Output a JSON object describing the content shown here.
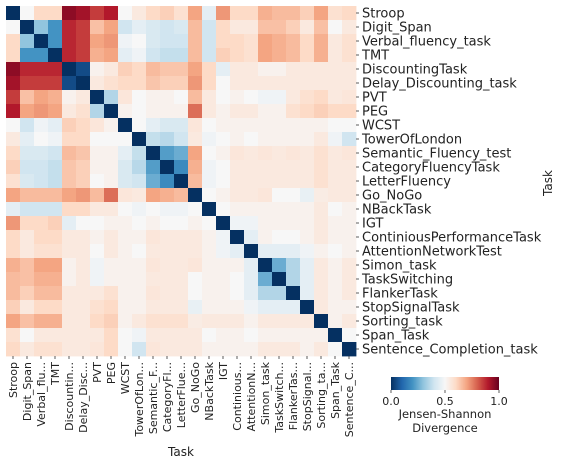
{
  "chart_data": {
    "type": "heatmap",
    "xlabel": "Task",
    "ylabel": "Task",
    "rows": [
      "Stroop",
      "Digit_Span",
      "Verbal_fluency_task",
      "TMT",
      "DiscountingTask",
      "Delay_Discounting_task",
      "PVT",
      "PEG",
      "WCST",
      "TowerOfLondon",
      "Semantic_Fluency_test",
      "CategoryFluencyTask",
      "LetterFluency",
      "Go_NoGo",
      "NBackTask",
      "IGT",
      "ContiniousPerformanceTask",
      "AttentionNetworkTest",
      "Simon_task",
      "TaskSwitching",
      "FlankerTask",
      "StopSignalTask",
      "Sorting_task",
      "Span_Task",
      "Sentence_Completion_task"
    ],
    "columns": [
      "Stroop",
      "Digit_Span",
      "Verbal_flu...",
      "TMT",
      "Discountin...",
      "Delay_Disc...",
      "PVT",
      "PEG",
      "WCST",
      "TowerOfLon...",
      "Semantic_F...",
      "CategoryFl...",
      "LetterFlue...",
      "Go_NoGo",
      "NBackTask",
      "IGT",
      "Continious...",
      "AttentionN...",
      "Simon_task",
      "TaskSwitch...",
      "FlankerTas...",
      "StopSignal...",
      "Sorting_ta...",
      "Span_Task",
      "Sentence_C..."
    ],
    "matrix": [
      [
        0.0,
        0.5,
        0.6,
        0.6,
        0.95,
        0.92,
        0.85,
        0.9,
        0.5,
        0.55,
        0.6,
        0.62,
        0.58,
        0.7,
        0.45,
        0.72,
        0.6,
        0.6,
        0.68,
        0.66,
        0.66,
        0.62,
        0.7,
        0.58,
        0.6
      ],
      [
        0.5,
        0.0,
        0.3,
        0.2,
        0.88,
        0.85,
        0.65,
        0.7,
        0.4,
        0.45,
        0.42,
        0.4,
        0.42,
        0.66,
        0.4,
        0.6,
        0.55,
        0.55,
        0.65,
        0.65,
        0.62,
        0.55,
        0.65,
        0.5,
        0.55
      ],
      [
        0.6,
        0.3,
        0.0,
        0.2,
        0.88,
        0.85,
        0.7,
        0.72,
        0.48,
        0.5,
        0.42,
        0.4,
        0.4,
        0.66,
        0.4,
        0.6,
        0.6,
        0.58,
        0.7,
        0.68,
        0.66,
        0.6,
        0.68,
        0.55,
        0.58
      ],
      [
        0.6,
        0.2,
        0.2,
        0.0,
        0.88,
        0.85,
        0.68,
        0.7,
        0.45,
        0.48,
        0.4,
        0.38,
        0.38,
        0.66,
        0.4,
        0.62,
        0.6,
        0.58,
        0.7,
        0.68,
        0.66,
        0.6,
        0.68,
        0.55,
        0.58
      ],
      [
        0.95,
        0.88,
        0.88,
        0.88,
        0.0,
        0.05,
        0.52,
        0.55,
        0.62,
        0.6,
        0.66,
        0.64,
        0.64,
        0.7,
        0.6,
        0.45,
        0.55,
        0.55,
        0.52,
        0.52,
        0.55,
        0.55,
        0.55,
        0.55,
        0.55
      ],
      [
        0.92,
        0.85,
        0.85,
        0.85,
        0.05,
        0.0,
        0.55,
        0.58,
        0.6,
        0.6,
        0.64,
        0.62,
        0.62,
        0.72,
        0.6,
        0.5,
        0.55,
        0.55,
        0.55,
        0.55,
        0.55,
        0.55,
        0.55,
        0.55,
        0.55
      ],
      [
        0.85,
        0.65,
        0.7,
        0.68,
        0.52,
        0.55,
        0.0,
        0.35,
        0.56,
        0.5,
        0.52,
        0.52,
        0.5,
        0.66,
        0.55,
        0.5,
        0.52,
        0.5,
        0.48,
        0.48,
        0.55,
        0.58,
        0.6,
        0.55,
        0.56
      ],
      [
        0.9,
        0.7,
        0.72,
        0.7,
        0.55,
        0.58,
        0.35,
        0.0,
        0.52,
        0.5,
        0.52,
        0.52,
        0.52,
        0.78,
        0.55,
        0.52,
        0.55,
        0.55,
        0.52,
        0.52,
        0.58,
        0.6,
        0.62,
        0.6,
        0.6
      ],
      [
        0.5,
        0.4,
        0.48,
        0.45,
        0.62,
        0.6,
        0.56,
        0.52,
        0.0,
        0.5,
        0.45,
        0.42,
        0.42,
        0.56,
        0.5,
        0.52,
        0.52,
        0.52,
        0.52,
        0.52,
        0.52,
        0.52,
        0.52,
        0.5,
        0.5
      ],
      [
        0.55,
        0.45,
        0.5,
        0.48,
        0.6,
        0.6,
        0.5,
        0.5,
        0.5,
        0.0,
        0.38,
        0.36,
        0.4,
        0.55,
        0.48,
        0.5,
        0.52,
        0.5,
        0.52,
        0.52,
        0.52,
        0.52,
        0.55,
        0.48,
        0.4
      ],
      [
        0.6,
        0.42,
        0.42,
        0.4,
        0.66,
        0.64,
        0.52,
        0.52,
        0.45,
        0.38,
        0.0,
        0.22,
        0.25,
        0.7,
        0.5,
        0.52,
        0.56,
        0.55,
        0.56,
        0.55,
        0.56,
        0.55,
        0.58,
        0.55,
        0.56
      ],
      [
        0.62,
        0.4,
        0.4,
        0.38,
        0.64,
        0.62,
        0.52,
        0.52,
        0.42,
        0.36,
        0.22,
        0.0,
        0.18,
        0.68,
        0.48,
        0.5,
        0.55,
        0.55,
        0.55,
        0.55,
        0.55,
        0.55,
        0.58,
        0.55,
        0.55
      ],
      [
        0.58,
        0.42,
        0.4,
        0.38,
        0.64,
        0.62,
        0.5,
        0.52,
        0.42,
        0.4,
        0.25,
        0.18,
        0.0,
        0.66,
        0.48,
        0.5,
        0.55,
        0.55,
        0.55,
        0.55,
        0.55,
        0.55,
        0.58,
        0.55,
        0.55
      ],
      [
        0.7,
        0.66,
        0.66,
        0.66,
        0.7,
        0.72,
        0.66,
        0.78,
        0.56,
        0.55,
        0.7,
        0.68,
        0.66,
        0.0,
        0.5,
        0.52,
        0.55,
        0.55,
        0.56,
        0.5,
        0.5,
        0.46,
        0.54,
        0.55,
        0.55
      ],
      [
        0.45,
        0.4,
        0.4,
        0.4,
        0.6,
        0.6,
        0.55,
        0.55,
        0.5,
        0.48,
        0.5,
        0.48,
        0.48,
        0.5,
        0.0,
        0.5,
        0.52,
        0.52,
        0.52,
        0.52,
        0.52,
        0.52,
        0.55,
        0.5,
        0.52
      ],
      [
        0.72,
        0.6,
        0.6,
        0.62,
        0.45,
        0.5,
        0.5,
        0.52,
        0.52,
        0.5,
        0.52,
        0.5,
        0.5,
        0.52,
        0.5,
        0.0,
        0.48,
        0.48,
        0.52,
        0.52,
        0.52,
        0.52,
        0.55,
        0.52,
        0.52
      ],
      [
        0.6,
        0.55,
        0.6,
        0.6,
        0.55,
        0.55,
        0.52,
        0.55,
        0.52,
        0.52,
        0.56,
        0.55,
        0.55,
        0.55,
        0.52,
        0.48,
        0.0,
        0.45,
        0.52,
        0.5,
        0.5,
        0.52,
        0.55,
        0.52,
        0.52
      ],
      [
        0.6,
        0.55,
        0.58,
        0.58,
        0.55,
        0.55,
        0.5,
        0.55,
        0.52,
        0.5,
        0.55,
        0.55,
        0.55,
        0.55,
        0.52,
        0.48,
        0.45,
        0.0,
        0.45,
        0.45,
        0.45,
        0.48,
        0.52,
        0.5,
        0.52
      ],
      [
        0.68,
        0.65,
        0.7,
        0.7,
        0.52,
        0.55,
        0.48,
        0.52,
        0.52,
        0.52,
        0.56,
        0.55,
        0.55,
        0.56,
        0.52,
        0.52,
        0.52,
        0.45,
        0.0,
        0.25,
        0.35,
        0.45,
        0.55,
        0.52,
        0.55
      ],
      [
        0.66,
        0.65,
        0.68,
        0.68,
        0.52,
        0.55,
        0.48,
        0.52,
        0.52,
        0.52,
        0.55,
        0.55,
        0.55,
        0.5,
        0.52,
        0.52,
        0.5,
        0.45,
        0.25,
        0.0,
        0.35,
        0.45,
        0.55,
        0.52,
        0.55
      ],
      [
        0.66,
        0.62,
        0.66,
        0.66,
        0.55,
        0.55,
        0.55,
        0.58,
        0.52,
        0.52,
        0.56,
        0.55,
        0.55,
        0.5,
        0.52,
        0.52,
        0.5,
        0.45,
        0.35,
        0.35,
        0.0,
        0.45,
        0.55,
        0.52,
        0.55
      ],
      [
        0.62,
        0.55,
        0.6,
        0.6,
        0.55,
        0.55,
        0.58,
        0.6,
        0.52,
        0.52,
        0.55,
        0.55,
        0.55,
        0.46,
        0.52,
        0.52,
        0.52,
        0.48,
        0.45,
        0.45,
        0.45,
        0.0,
        0.55,
        0.52,
        0.52
      ],
      [
        0.7,
        0.65,
        0.68,
        0.68,
        0.55,
        0.55,
        0.6,
        0.62,
        0.52,
        0.55,
        0.58,
        0.58,
        0.58,
        0.54,
        0.55,
        0.55,
        0.55,
        0.52,
        0.55,
        0.55,
        0.55,
        0.55,
        0.0,
        0.52,
        0.55
      ],
      [
        0.58,
        0.5,
        0.55,
        0.55,
        0.55,
        0.55,
        0.55,
        0.6,
        0.5,
        0.48,
        0.55,
        0.55,
        0.55,
        0.55,
        0.5,
        0.52,
        0.52,
        0.5,
        0.52,
        0.52,
        0.52,
        0.52,
        0.52,
        0.0,
        0.5
      ],
      [
        0.6,
        0.55,
        0.58,
        0.58,
        0.55,
        0.55,
        0.56,
        0.6,
        0.5,
        0.4,
        0.56,
        0.55,
        0.55,
        0.55,
        0.52,
        0.52,
        0.52,
        0.52,
        0.55,
        0.55,
        0.55,
        0.52,
        0.55,
        0.5,
        0.0
      ]
    ],
    "colorbar": {
      "title_line1": "Jensen-Shannon",
      "title_line2": "Divergence",
      "ticks": [
        {
          "value": 0,
          "label": "0.0"
        },
        {
          "value": 0.5,
          "label": "0.5"
        },
        {
          "value": 1,
          "label": "1.0"
        }
      ],
      "range": [
        0,
        1
      ],
      "colormap": "RdBu_r",
      "colors": [
        "#053061",
        "#2166ac",
        "#4393c3",
        "#92c5de",
        "#d1e5f0",
        "#f7f7f7",
        "#fddbc7",
        "#f4a582",
        "#d6604d",
        "#b2182b",
        "#67001f"
      ]
    }
  }
}
